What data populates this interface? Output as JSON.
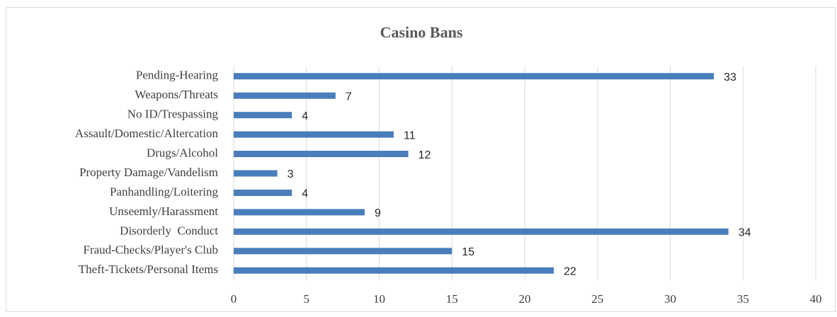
{
  "chart_data": {
    "type": "bar",
    "orientation": "horizontal",
    "title": "Casino Bans",
    "categories": [
      "Pending-Hearing",
      "Weapons/Threats",
      "No ID/Trespassing",
      "Assault/Domestic/Altercation",
      "Drugs/Alcohol",
      "Property Damage/Vandelism",
      "Panhandling/Loitering",
      "Unseemly/Harassment",
      "Disorderly  Conduct",
      "Fraud-Checks/Player's Club",
      "Theft-Tickets/Personal Items"
    ],
    "values": [
      33,
      7,
      4,
      11,
      12,
      3,
      4,
      9,
      34,
      15,
      22
    ],
    "color": "#4a7ebb",
    "xlim": [
      0,
      40
    ],
    "xticks": [
      0,
      5,
      10,
      15,
      20,
      25,
      30,
      35,
      40
    ],
    "grid": true
  }
}
